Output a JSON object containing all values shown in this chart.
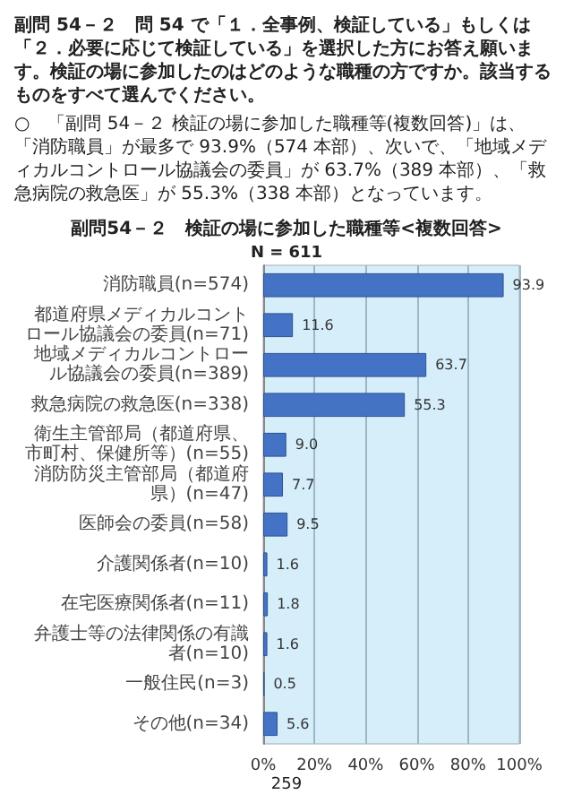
{
  "chart_data": {
    "type": "bar",
    "orientation": "horizontal",
    "title": "副問 54－２　問 54 で「１．全事例、検証している」もしくは「２．必要に応じて検証している」を選択した方にお答え願います。検証の場に参加したのはどのような職種の方ですか。該当するものをすべて選んでください。",
    "subtitle": "副問54－２　検証の場に参加した職種等<複数回答>",
    "xlabel": "N = 611",
    "categories": [
      "消防職員(n=574)",
      "都道府県メディカルコントロール協議会の委員(n=71)",
      "地域メディカルコントロール協議会の委員(n=389)",
      "救急病院の救急医(n=338)",
      "衛生主管部局（都道府県、市町村、保健所等）(n=55)",
      "消防防災主管部局（都道府県）(n=47)",
      "医師会の委員(n=58)",
      "介護関係者(n=10)",
      "在宅医療関係者(n=11)",
      "弁護士等の法律関係の有識者(n=10)",
      "一般住民(n=3)",
      "その他(n=34)"
    ],
    "values": [
      93.9,
      11.6,
      63.7,
      55.3,
      9.0,
      7.7,
      9.5,
      1.6,
      1.8,
      1.6,
      0.5,
      5.6
    ],
    "value_labels": [
      "93.9",
      "11.6",
      "63.7",
      "55.3",
      "9.0",
      "7.7",
      "9.5",
      "1.6",
      "1.8",
      "1.6",
      "0.5",
      "5.6"
    ],
    "color": "#4472c4",
    "xlim": [
      0,
      100
    ],
    "xticks": [
      {
        "value": 0,
        "label": "0%"
      },
      {
        "value": 20,
        "label": "20%"
      },
      {
        "value": 40,
        "label": "40%"
      },
      {
        "value": 60,
        "label": "60%"
      },
      {
        "value": 80,
        "label": "80%"
      },
      {
        "value": 100,
        "label": "100%"
      }
    ],
    "grid": "x",
    "annotations": [
      "○　「副問 54－２ 検証の場に参加した職種等(複数回答)」は、「消防職員」が最多で 93.9%（574 本部）、次いで、「地域メディカルコントロール協議会の委員」が 63.7%（389 本部）、「救急病院の救急医」が 55.3%（338 本部）となっています。",
      "259"
    ]
  }
}
